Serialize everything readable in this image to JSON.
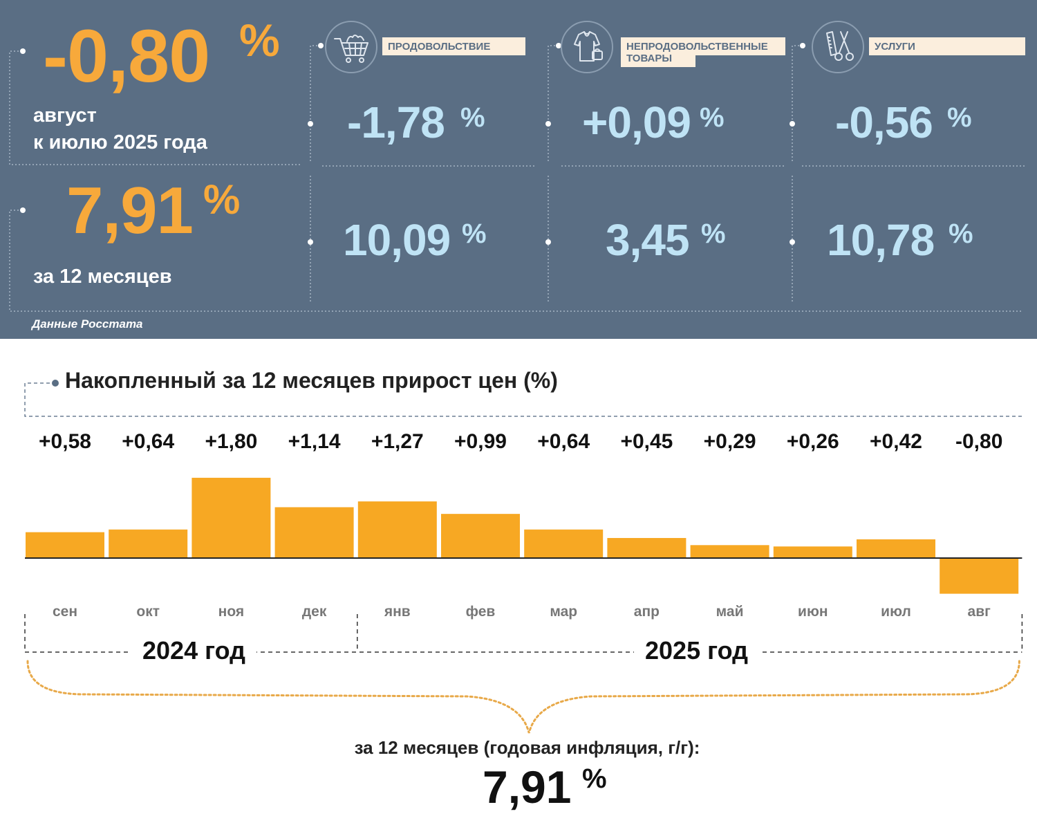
{
  "monthly": {
    "value": "-0,80",
    "unit": "%",
    "label_line1": "август",
    "label_line2": "к июлю 2025 года"
  },
  "annual": {
    "value": "7,91",
    "unit": "%",
    "label": "за 12 месяцев"
  },
  "source": "Данные Росстата",
  "categories": [
    {
      "name": "ПРОДОВОЛЬСТВИЕ",
      "name_line2": "",
      "icon": "shopping-cart-icon",
      "monthly": "-1,78",
      "annual": "10,09",
      "unit": "%"
    },
    {
      "name": "НЕПРОДОВОЛЬСТВЕННЫЕ",
      "name_line2": "ТОВАРЫ",
      "icon": "clothing-icon",
      "monthly": "+0,09",
      "annual": "3,45",
      "unit": "%"
    },
    {
      "name": "УСЛУГИ",
      "name_line2": "",
      "icon": "scissors-comb-icon",
      "monthly": "-0,56",
      "annual": "10,78",
      "unit": "%"
    }
  ],
  "chart_data": {
    "type": "bar",
    "title": "Накопленный за 12 месяцев прирост цен (%)",
    "categories": [
      "сен",
      "окт",
      "ноя",
      "дек",
      "янв",
      "фев",
      "мар",
      "апр",
      "май",
      "июн",
      "июл",
      "авг"
    ],
    "values": [
      0.58,
      0.64,
      1.8,
      1.14,
      1.27,
      0.99,
      0.64,
      0.45,
      0.29,
      0.26,
      0.42,
      -0.8
    ],
    "value_labels": [
      "+0,58",
      "+0,64",
      "+1,80",
      "+1,14",
      "+1,27",
      "+0,99",
      "+0,64",
      "+0,45",
      "+0,29",
      "+0,26",
      "+0,42",
      "-0,80"
    ],
    "years": [
      {
        "label": "2024 год",
        "months": 4
      },
      {
        "label": "2025 год",
        "months": 8
      }
    ],
    "bar_color": "#f7a823",
    "total_label": "за 12 месяцев (годовая инфляция, г/г):",
    "total_value": "7,91",
    "total_unit": "%"
  }
}
